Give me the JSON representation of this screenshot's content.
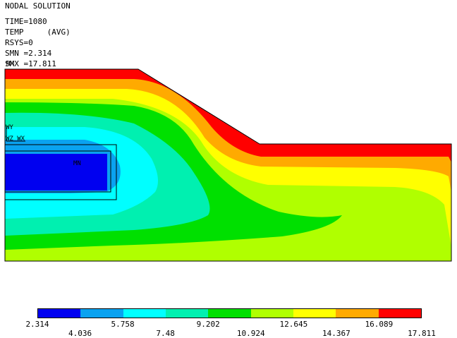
{
  "header": {
    "title": "NODAL SOLUTION",
    "time": "TIME=1080",
    "item": "TEMP     (AVG)",
    "rsys": "RSYS=0",
    "smn": "SMN =2.314",
    "smx": "SMX =17.811"
  },
  "overlay_labels": {
    "triad_y": "WY",
    "triad_zx": "WZ WX",
    "mn_marker": "MN",
    "mx_marker": "MX"
  },
  "legend": {
    "colors": [
      "#0000f0",
      "#0aa2f0",
      "#00ffff",
      "#00f0b0",
      "#00e000",
      "#b0ff00",
      "#ffff00",
      "#ffaa00",
      "#ff0000"
    ],
    "ticks_bottom_row": [
      "2.314",
      "5.758",
      "9.202",
      "12.645",
      "16.089"
    ],
    "ticks_top_row": [
      "4.036",
      "7.48",
      "10.924",
      "14.367",
      "17.811"
    ]
  },
  "contour": {
    "min": 2.314,
    "max": 17.811,
    "bands": 9
  }
}
